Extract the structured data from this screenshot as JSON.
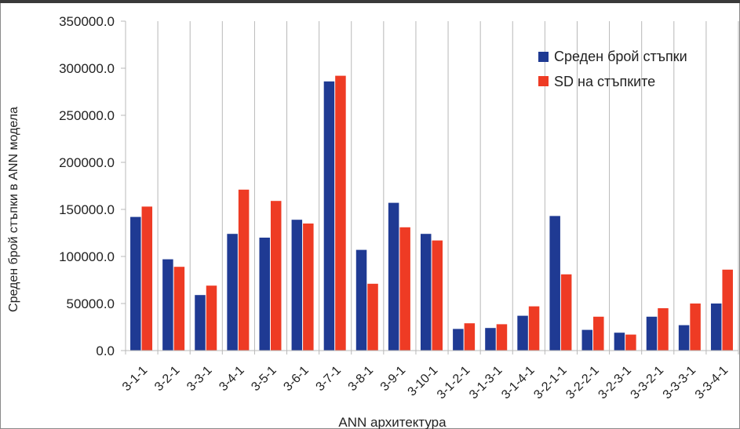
{
  "chart_data": {
    "type": "bar",
    "xlabel": "ANN архитектура",
    "ylabel": "Среден брой стъпки в ANN модела",
    "ylim": [
      0,
      350000
    ],
    "yticks": [
      "0.0",
      "50000.0",
      "100000.0",
      "150000.0",
      "200000.0",
      "250000.0",
      "300000.0",
      "350000.0"
    ],
    "grid": "vertical",
    "legend_position": "top-right",
    "categories": [
      "3-1-1",
      "3-2-1",
      "3-3-1",
      "3-4-1",
      "3-5-1",
      "3-6-1",
      "3-7-1",
      "3-8-1",
      "3-9-1",
      "3-10-1",
      "3-1-2-1",
      "3-1-3-1",
      "3-1-4-1",
      "3-2-1-1",
      "3-2-2-1",
      "3-2-3-1",
      "3-3-2-1",
      "3-3-3-1",
      "3-3-4-1"
    ],
    "series": [
      {
        "name": "Среден брой стъпки",
        "color": "#1f3a93",
        "values": [
          142000,
          97000,
          59000,
          124000,
          120000,
          139000,
          286000,
          107000,
          157000,
          124000,
          23000,
          24000,
          37000,
          143000,
          22000,
          19000,
          36000,
          27000,
          50000
        ]
      },
      {
        "name": "SD на стъпките",
        "color": "#ee3b24",
        "values": [
          153000,
          89000,
          69000,
          171000,
          159000,
          135000,
          292000,
          71000,
          131000,
          117000,
          29000,
          28000,
          47000,
          81000,
          36000,
          17000,
          45000,
          50000,
          86000
        ]
      }
    ]
  }
}
